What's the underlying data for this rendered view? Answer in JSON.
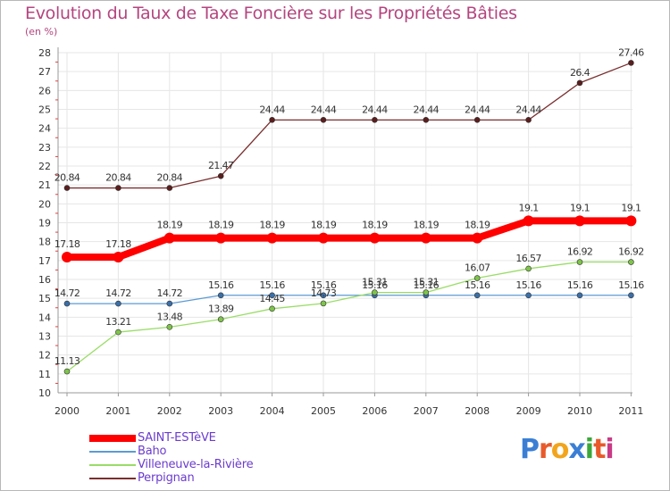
{
  "title": "Evolution du Taux de Taxe Foncière sur les Propriétés Bâties",
  "subtitle": "(en %)",
  "brand": {
    "text": "Proxiti",
    "letter_colors": [
      "#3b7fd4",
      "#e85a2a",
      "#f2a51c",
      "#3b7fd4",
      "#3aa83a",
      "#e85a2a",
      "#c93a86"
    ]
  },
  "legend": [
    {
      "label": "SAINT-ESTèVE",
      "color": "#ff0000",
      "weight": "thick"
    },
    {
      "label": "Baho",
      "color": "#5b9bd5",
      "weight": "thin"
    },
    {
      "label": "Villeneuve-la-Rivière",
      "color": "#99dd66",
      "weight": "thin"
    },
    {
      "label": "Perpignan",
      "color": "#7a2e2e",
      "weight": "thin"
    }
  ],
  "chart_data": {
    "type": "line",
    "title": "Evolution du Taux de Taxe Foncière sur les Propriétés Bâties",
    "ylabel": "(en %)",
    "xlabel": "",
    "x": [
      "2000",
      "2001",
      "2002",
      "2003",
      "2004",
      "2005",
      "2006",
      "2007",
      "2008",
      "2009",
      "2010",
      "2011"
    ],
    "ylim": [
      10,
      28
    ],
    "yticks": [
      "10",
      "11",
      "12",
      "13",
      "14",
      "15",
      "16",
      "17",
      "18",
      "19",
      "20",
      "21",
      "22",
      "23",
      "24",
      "25",
      "26",
      "27",
      "28"
    ],
    "grid": true,
    "legend_position": "bottom-left",
    "series": [
      {
        "name": "Perpignan",
        "color": "#7a2e2e",
        "marker_color": "#5a1e1e",
        "values": [
          20.84,
          20.84,
          20.84,
          21.47,
          24.44,
          24.44,
          24.44,
          24.44,
          24.44,
          24.44,
          26.4,
          27.46
        ],
        "labels": [
          "20.84",
          "20.84",
          "20.84",
          "21.47",
          "24.44",
          "24.44",
          "24.44",
          "24.44",
          "24.44",
          "24.44",
          "26.4",
          "27.46"
        ]
      },
      {
        "name": "Baho",
        "color": "#5b9bd5",
        "marker_color": "#3a6fa8",
        "values": [
          14.72,
          14.72,
          14.72,
          15.16,
          15.16,
          15.16,
          15.16,
          15.16,
          15.16,
          15.16,
          15.16,
          15.16
        ],
        "labels": [
          "14.72",
          "14.72",
          "14.72",
          "15.16",
          "15.16",
          "15.16",
          "15.16",
          "15.16",
          "15.16",
          "15.16",
          "15.16",
          "15.16"
        ]
      },
      {
        "name": "Villeneuve-la-Rivière",
        "color": "#99dd66",
        "marker_color": "#7ec44a",
        "values": [
          11.13,
          13.21,
          13.48,
          13.89,
          14.45,
          14.73,
          15.31,
          15.31,
          16.07,
          16.57,
          16.92,
          16.92
        ],
        "labels": [
          "11.13",
          "13.21",
          "13.48",
          "13.89",
          "14.45",
          "14.73",
          "15.31",
          "15.31",
          "16.07",
          "16.57",
          "16.92",
          "16.92"
        ]
      },
      {
        "name": "SAINT-ESTèVE",
        "color": "#ff0000",
        "marker_color": "#ff0000",
        "values": [
          17.18,
          17.18,
          18.19,
          18.19,
          18.19,
          18.19,
          18.19,
          18.19,
          18.19,
          19.1,
          19.1,
          19.1
        ],
        "labels": [
          "17.18",
          "17.18",
          "18.19",
          "18.19",
          "18.19",
          "18.19",
          "18.19",
          "18.19",
          "18.19",
          "19.1",
          "19.1",
          "19.1"
        ]
      }
    ]
  }
}
